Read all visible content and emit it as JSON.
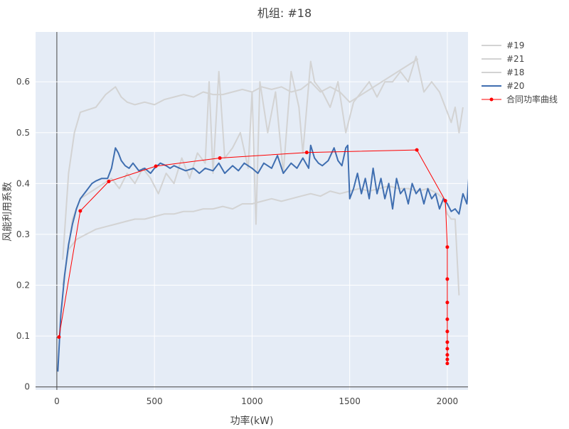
{
  "chart_data": {
    "type": "line",
    "title": "机组: #18",
    "xlabel": "功率(kW)",
    "ylabel": "风能利用系数",
    "xlim": [
      -109,
      2106
    ],
    "ylim": [
      -0.006,
      0.698
    ],
    "x_ticks": [
      0,
      500,
      1000,
      1500,
      2000
    ],
    "y_ticks": [
      0,
      0.1,
      0.2,
      0.3,
      0.4,
      0.5,
      0.6
    ],
    "grid": true,
    "legend_position": "right",
    "series": [
      {
        "name": "#19",
        "color": "#d3d3d3",
        "marker": false,
        "x": [
          30,
          60,
          90,
          120,
          160,
          200,
          250,
          300,
          330,
          360,
          400,
          450,
          500,
          550,
          600,
          650,
          700,
          750,
          800,
          850,
          900,
          950,
          1000,
          1050,
          1100,
          1150,
          1200,
          1250,
          1300,
          1350,
          1400,
          1450,
          1500,
          1850
        ],
        "y": [
          0.25,
          0.42,
          0.5,
          0.54,
          0.545,
          0.55,
          0.575,
          0.59,
          0.57,
          0.56,
          0.555,
          0.56,
          0.555,
          0.565,
          0.57,
          0.575,
          0.57,
          0.58,
          0.575,
          0.575,
          0.58,
          0.585,
          0.58,
          0.59,
          0.585,
          0.59,
          0.58,
          0.585,
          0.6,
          0.58,
          0.59,
          0.58,
          0.56,
          0.645
        ]
      },
      {
        "name": "#21",
        "color": "#d3d3d3",
        "marker": false,
        "x": [
          30,
          60,
          100,
          150,
          200,
          250,
          300,
          350,
          400,
          450,
          500,
          550,
          600,
          650,
          700,
          750,
          800,
          850,
          900,
          950,
          1000,
          1050,
          1100,
          1150,
          1200,
          1250,
          1300,
          1350,
          1400,
          1450,
          1500,
          1550,
          1600,
          1650,
          1700,
          1750,
          1800,
          1850,
          1900,
          1950,
          1980,
          2000,
          2020,
          2040,
          2060
        ],
        "y": [
          0.2,
          0.27,
          0.29,
          0.3,
          0.31,
          0.315,
          0.32,
          0.325,
          0.33,
          0.33,
          0.335,
          0.34,
          0.34,
          0.345,
          0.345,
          0.35,
          0.35,
          0.355,
          0.35,
          0.36,
          0.36,
          0.365,
          0.37,
          0.365,
          0.37,
          0.375,
          0.38,
          0.375,
          0.385,
          0.38,
          0.385,
          0.39,
          0.385,
          0.39,
          0.395,
          0.39,
          0.39,
          0.385,
          0.39,
          0.38,
          0.37,
          0.34,
          0.33,
          0.33,
          0.18
        ]
      },
      {
        "name": "#18",
        "color": "#d3d3d3",
        "marker": false,
        "x": [
          40,
          80,
          120,
          160,
          200,
          240,
          280,
          320,
          360,
          400,
          440,
          480,
          520,
          560,
          600,
          640,
          680,
          720,
          760,
          780,
          800,
          830,
          860,
          900,
          940,
          980,
          1000,
          1020,
          1040,
          1080,
          1120,
          1160,
          1200,
          1240,
          1260,
          1300,
          1320,
          1360,
          1400,
          1440,
          1480,
          1520,
          1560,
          1600,
          1640,
          1680,
          1720,
          1760,
          1800,
          1840,
          1880,
          1920,
          1960,
          1990,
          2020,
          2040,
          2060,
          2080
        ],
        "y": [
          0.22,
          0.33,
          0.37,
          0.38,
          0.39,
          0.4,
          0.41,
          0.39,
          0.42,
          0.4,
          0.43,
          0.41,
          0.38,
          0.42,
          0.4,
          0.45,
          0.41,
          0.46,
          0.44,
          0.6,
          0.42,
          0.62,
          0.45,
          0.47,
          0.5,
          0.43,
          0.58,
          0.32,
          0.6,
          0.5,
          0.58,
          0.42,
          0.62,
          0.55,
          0.46,
          0.64,
          0.6,
          0.58,
          0.55,
          0.6,
          0.5,
          0.56,
          0.58,
          0.6,
          0.57,
          0.6,
          0.6,
          0.62,
          0.6,
          0.65,
          0.58,
          0.6,
          0.58,
          0.55,
          0.52,
          0.55,
          0.5,
          0.55
        ]
      },
      {
        "name": "#20",
        "color": "#3f6eb0",
        "marker": false,
        "x": [
          5,
          20,
          40,
          60,
          80,
          100,
          120,
          150,
          180,
          200,
          230,
          260,
          280,
          300,
          315,
          330,
          350,
          370,
          390,
          420,
          450,
          480,
          500,
          530,
          560,
          580,
          600,
          630,
          660,
          700,
          730,
          760,
          800,
          830,
          860,
          900,
          930,
          960,
          1000,
          1030,
          1060,
          1100,
          1130,
          1160,
          1200,
          1230,
          1260,
          1290,
          1300,
          1320,
          1340,
          1360,
          1390,
          1420,
          1440,
          1460,
          1480,
          1490,
          1500,
          1520,
          1540,
          1560,
          1580,
          1600,
          1620,
          1640,
          1660,
          1680,
          1700,
          1720,
          1740,
          1760,
          1780,
          1800,
          1820,
          1840,
          1860,
          1880,
          1900,
          1920,
          1940,
          1960,
          1980,
          2000,
          2020,
          2040,
          2060,
          2080,
          2100,
          2125
        ],
        "y": [
          0.03,
          0.14,
          0.22,
          0.28,
          0.32,
          0.35,
          0.37,
          0.385,
          0.4,
          0.405,
          0.41,
          0.41,
          0.43,
          0.47,
          0.46,
          0.445,
          0.435,
          0.43,
          0.44,
          0.425,
          0.43,
          0.42,
          0.43,
          0.44,
          0.435,
          0.43,
          0.435,
          0.43,
          0.425,
          0.43,
          0.42,
          0.43,
          0.425,
          0.44,
          0.42,
          0.435,
          0.425,
          0.44,
          0.43,
          0.42,
          0.44,
          0.43,
          0.455,
          0.42,
          0.44,
          0.43,
          0.45,
          0.43,
          0.475,
          0.45,
          0.44,
          0.435,
          0.445,
          0.47,
          0.445,
          0.435,
          0.47,
          0.475,
          0.37,
          0.39,
          0.42,
          0.38,
          0.41,
          0.37,
          0.43,
          0.38,
          0.41,
          0.37,
          0.4,
          0.35,
          0.41,
          0.38,
          0.39,
          0.36,
          0.4,
          0.38,
          0.39,
          0.36,
          0.39,
          0.37,
          0.38,
          0.35,
          0.37,
          0.36,
          0.345,
          0.35,
          0.34,
          0.38,
          0.36,
          0.49
        ]
      },
      {
        "name": "合同功率曲线",
        "color": "#ff0000",
        "marker": true,
        "x": [
          11,
          120,
          266,
          507,
          835,
          1280,
          1844,
          1990,
          2000,
          2000,
          2000,
          2000,
          2000,
          2000,
          2000,
          2000,
          2000,
          2000
        ],
        "y": [
          0.098,
          0.346,
          0.404,
          0.434,
          0.45,
          0.461,
          0.466,
          0.366,
          0.275,
          0.212,
          0.166,
          0.133,
          0.109,
          0.088,
          0.075,
          0.063,
          0.054,
          0.046
        ]
      }
    ]
  }
}
